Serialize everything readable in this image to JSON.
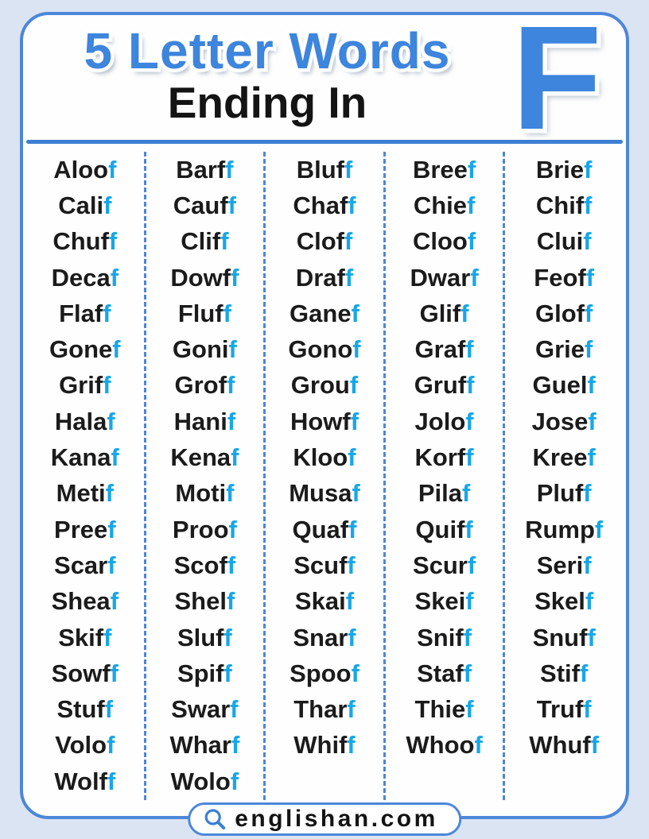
{
  "page": {
    "background_color": "#dbe4f2"
  },
  "card": {
    "background_color": "#fefefe",
    "border_color": "#4c87da"
  },
  "header": {
    "title": "5 Letter Words",
    "subtitle": "Ending In",
    "letter": "F",
    "title_color": "#3d85dd",
    "subtitle_color": "#141414",
    "rule_color": "#3d7fd2"
  },
  "word_grid": {
    "suffix_letter": "f",
    "suffix_color": "#16a7e8",
    "word_color": "#1b1b1b",
    "divider_color": "#4d86d9",
    "columns": [
      [
        "Aloof",
        "Calif",
        "Chuff",
        "Decaf",
        "Flaff",
        "Gonef",
        "Griff",
        "Halaf",
        "Kanaf",
        "Metif",
        "Preef",
        "Scarf",
        "Sheaf",
        "Skiff",
        "Sowff",
        "Stuff",
        "Volof",
        "Wolff"
      ],
      [
        "Barff",
        "Cauff",
        "Cliff",
        "Dowff",
        "Fluff",
        "Gonif",
        "Groff",
        "Hanif",
        "Kenaf",
        "Motif",
        "Proof",
        "Scoff",
        "Shelf",
        "Sluff",
        "Spiff",
        "Swarf",
        "Wharf",
        "Wolof"
      ],
      [
        "Bluff",
        "Chaff",
        "Cloff",
        "Draff",
        "Ganef",
        "Gonof",
        "Grouf",
        "Howff",
        "Kloof",
        "Musaf",
        "Quaff",
        "Scuff",
        "Skaif",
        "Snarf",
        "Spoof",
        "Tharf",
        "Whiff"
      ],
      [
        "Breef",
        "Chief",
        "Cloof",
        "Dwarf",
        "Gliff",
        "Graff",
        "Gruff",
        "Jolof",
        "Korff",
        "Pilaf",
        "Quiff",
        "Scurf",
        "Skeif",
        "Sniff",
        "Staff",
        "Thief",
        "Whoof"
      ],
      [
        "Brief",
        "Chiff",
        "Cluif",
        "Feoff",
        "Gloff",
        "Grief",
        "Guelf",
        "Josef",
        "Kreef",
        "Pluff",
        "Rumpf",
        "Serif",
        "Skelf",
        "Snuff",
        "Stiff",
        "Truff",
        "Whuff"
      ]
    ]
  },
  "footer": {
    "site_name": "englishan.com",
    "icon": "search-icon",
    "icon_color": "#3b7fd6"
  }
}
